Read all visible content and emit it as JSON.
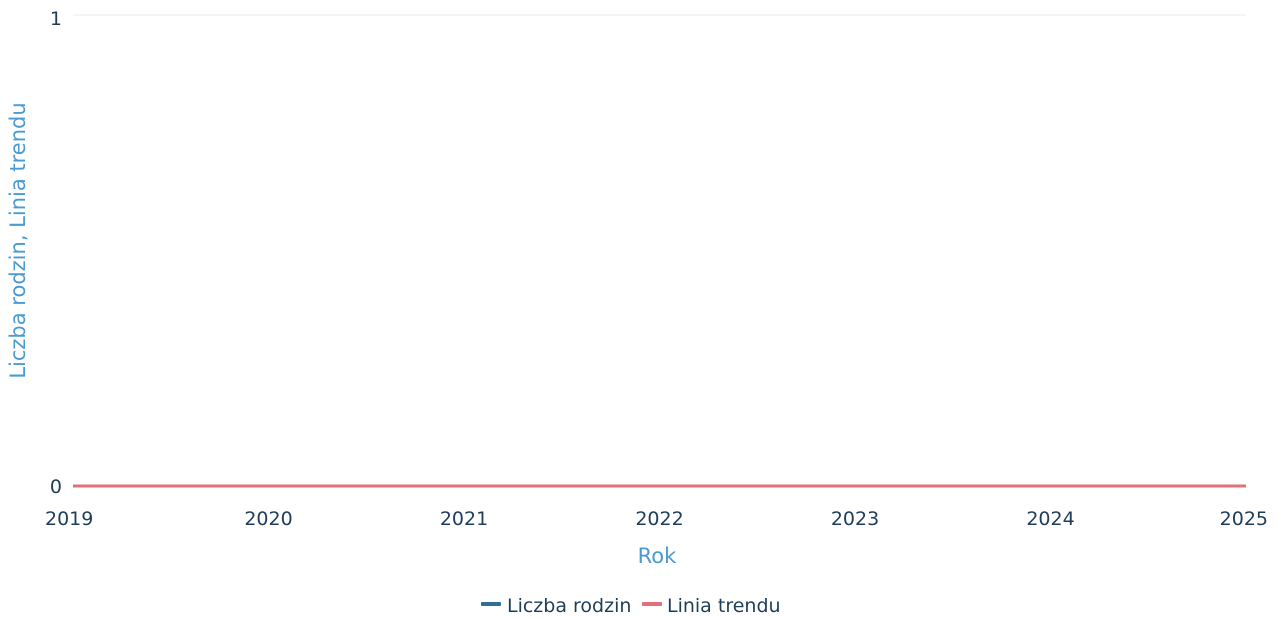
{
  "chart_data": {
    "type": "line",
    "title": "",
    "xlabel": "Rok",
    "ylabel": "Liczba rodzin, Linia trendu",
    "x_ticks": [
      "2019",
      "2020",
      "2021",
      "2022",
      "2023",
      "2024",
      "2025"
    ],
    "y_ticks": [
      "0",
      "1"
    ],
    "xlim": [
      2019,
      2025
    ],
    "ylim": [
      0,
      1
    ],
    "grid": false,
    "legend_position": "bottom-center",
    "series": [
      {
        "name": "Liczba rodzin",
        "color": "#2f6f96",
        "x": [
          2019,
          2020,
          2021,
          2022,
          2023,
          2024,
          2025
        ],
        "y": [
          0,
          0,
          0,
          0,
          0,
          0,
          0
        ]
      },
      {
        "name": "Linia trendu",
        "color": "#e0707a",
        "x": [
          2019,
          2020,
          2021,
          2022,
          2023,
          2024,
          2025
        ],
        "y": [
          0,
          0,
          0,
          0,
          0,
          0,
          0
        ]
      }
    ]
  }
}
